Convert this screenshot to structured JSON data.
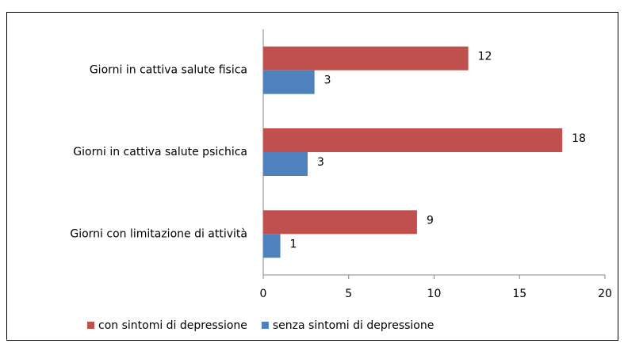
{
  "chart_data": {
    "type": "hbar",
    "categories": [
      "Giorni in cattiva salute fisica",
      "Giorni in cattiva salute psichica",
      "Giorni con limitazione di attività"
    ],
    "series": [
      {
        "name": "con sintomi di depressione",
        "color": "#c0504d",
        "values": [
          12,
          17.5,
          9
        ],
        "value_labels": [
          "12",
          "18",
          "9"
        ]
      },
      {
        "name": "senza sintomi di depressione",
        "color": "#4f81bd",
        "values": [
          3,
          2.6,
          1
        ],
        "value_labels": [
          "3",
          "3",
          "1"
        ]
      }
    ],
    "xlim": [
      0,
      20
    ],
    "xticks": [
      0,
      5,
      10,
      15,
      20
    ],
    "grid": false,
    "legend": "bottom"
  }
}
